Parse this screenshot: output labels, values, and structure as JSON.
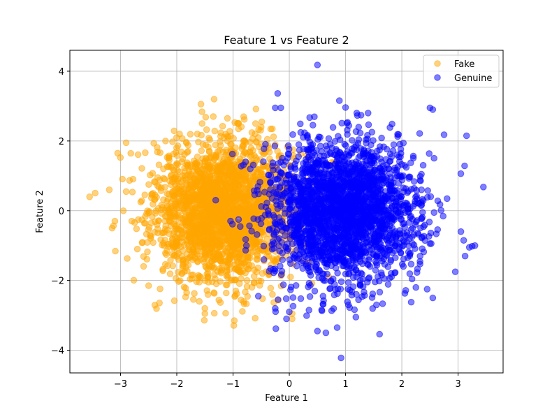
{
  "chart_data": {
    "type": "scatter",
    "title": "Feature 1 vs Feature 2",
    "xlabel": "Feature 1",
    "ylabel": "Feature 2",
    "xlim": [
      -3.9,
      3.8
    ],
    "ylim": [
      -4.65,
      4.6
    ],
    "xticks": [
      -3,
      -2,
      -1,
      0,
      1,
      2,
      3
    ],
    "yticks": [
      -4,
      -2,
      0,
      2,
      4
    ],
    "xtick_labels": [
      "−3",
      "−2",
      "−1",
      "0",
      "1",
      "2",
      "3"
    ],
    "ytick_labels": [
      "−4",
      "−2",
      "0",
      "2",
      "4"
    ],
    "grid": true,
    "legend_position": "top-right",
    "series": [
      {
        "name": "Fake",
        "color": "#FFA500",
        "opacity": 0.5,
        "n_points": 2500,
        "x_mean": -1.15,
        "x_std": 0.62,
        "y_mean": 0.0,
        "y_std": 0.98,
        "points": [
          [
            -3.55,
            0.4
          ],
          [
            -3.2,
            0.6
          ],
          [
            -3.15,
            -0.5
          ],
          [
            -3.1,
            -0.3
          ],
          [
            -3.05,
            1.65
          ],
          [
            -2.9,
            1.95
          ],
          [
            -2.9,
            0.55
          ],
          [
            -2.95,
            0.0
          ],
          [
            -2.8,
            -0.3
          ],
          [
            -2.7,
            -1.1
          ],
          [
            -2.5,
            -2.15
          ],
          [
            -2.2,
            2.0
          ],
          [
            -1.95,
            2.2
          ],
          [
            -1.6,
            -2.6
          ],
          [
            -1.55,
            2.5
          ],
          [
            -1.5,
            -2.95
          ],
          [
            -1.5,
            -2.8
          ],
          [
            -1.35,
            2.7
          ],
          [
            -1.1,
            2.65
          ],
          [
            -0.95,
            -2.3
          ],
          [
            -0.75,
            -2.0
          ],
          [
            -0.6,
            2.5
          ],
          [
            -0.5,
            2.4
          ],
          [
            -0.3,
            -2.4
          ],
          [
            0.05,
            -3.1
          ],
          [
            0.05,
            -2.95
          ]
        ]
      },
      {
        "name": "Genuine",
        "color": "#0000FF",
        "opacity": 0.5,
        "n_points": 2500,
        "x_mean": 0.95,
        "x_std": 0.65,
        "y_mean": 0.0,
        "y_std": 1.0,
        "points": [
          [
            0.5,
            4.18
          ],
          [
            0.92,
            -4.22
          ],
          [
            0.5,
            -3.45
          ],
          [
            0.65,
            -3.5
          ],
          [
            0.85,
            -3.35
          ],
          [
            -0.05,
            -3.1
          ],
          [
            -0.25,
            2.95
          ],
          [
            -0.15,
            2.95
          ],
          [
            1.2,
            2.8
          ],
          [
            1.4,
            2.8
          ],
          [
            2.55,
            2.9
          ],
          [
            2.5,
            2.95
          ],
          [
            2.75,
            2.18
          ],
          [
            3.15,
            2.15
          ],
          [
            3.45,
            0.68
          ],
          [
            3.05,
            -0.6
          ],
          [
            3.1,
            -0.85
          ],
          [
            3.2,
            -1.05
          ],
          [
            3.3,
            -1.0
          ],
          [
            3.25,
            -1.02
          ],
          [
            2.95,
            -1.75
          ],
          [
            2.55,
            -2.5
          ],
          [
            2.45,
            -2.25
          ],
          [
            2.25,
            -2.2
          ],
          [
            1.55,
            -2.7
          ],
          [
            1.05,
            -2.7
          ],
          [
            0.6,
            -2.45
          ],
          [
            0.35,
            -2.85
          ],
          [
            0.0,
            -2.9
          ],
          [
            -0.2,
            -2.55
          ],
          [
            -0.55,
            -2.45
          ],
          [
            -0.25,
            -2.8
          ]
        ]
      }
    ]
  }
}
